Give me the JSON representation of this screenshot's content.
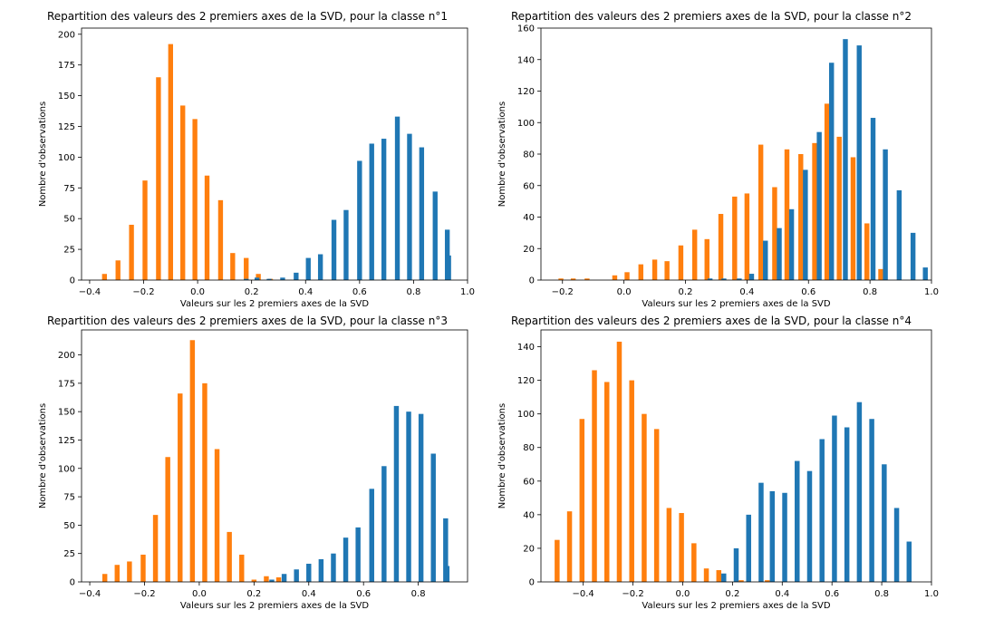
{
  "colors": {
    "series_blue": "#1f77b4",
    "series_orange": "#ff7f0e",
    "axis": "#000000",
    "background": "#ffffff"
  },
  "chart_data": [
    {
      "type": "bar",
      "title": "Repartition des valeurs des 2 premiers axes de la SVD, pour la classe n°1",
      "xlabel": "Valeurs sur les 2 premiers axes de la SVD",
      "ylabel": "Nombre d'observations",
      "xlim": [
        -0.43,
        1.0
      ],
      "ylim": [
        0,
        205
      ],
      "xticks": [
        -0.4,
        -0.2,
        0.0,
        0.2,
        0.4,
        0.6,
        0.8,
        1.0
      ],
      "xtick_labels": [
        "−0.4",
        "−0.2",
        "0.0",
        "0.2",
        "0.4",
        "0.6",
        "0.8",
        "1.0"
      ],
      "yticks": [
        0,
        25,
        50,
        75,
        100,
        125,
        150,
        175,
        200
      ],
      "grid": false,
      "legend": "none",
      "bar_width": 0.018,
      "series": [
        {
          "color": "#ff7f0e",
          "x": [
            -0.345,
            -0.295,
            -0.245,
            -0.195,
            -0.145,
            -0.1,
            -0.055,
            -0.01,
            0.035,
            0.085,
            0.13,
            0.18,
            0.225,
            0.27
          ],
          "values": [
            5,
            16,
            45,
            81,
            165,
            192,
            142,
            131,
            85,
            65,
            22,
            18,
            5,
            1
          ]
        },
        {
          "color": "#1f77b4",
          "x": [
            0.18,
            0.22,
            0.265,
            0.315,
            0.365,
            0.41,
            0.455,
            0.505,
            0.55,
            0.6,
            0.645,
            0.69,
            0.74,
            0.785,
            0.83,
            0.88,
            0.925
          ],
          "values": [
            1,
            2,
            1,
            2,
            6,
            18,
            21,
            49,
            57,
            97,
            111,
            115,
            133,
            119,
            108,
            72,
            41
          ]
        },
        {
          "color": "#1f77b4",
          "x": [
            0.93
          ],
          "values": [
            20
          ]
        }
      ]
    },
    {
      "type": "bar",
      "title": "Repartition des valeurs des 2 premiers axes de la SVD, pour la classe n°2",
      "xlabel": "Valeurs sur les 2 premiers axes de la SVD",
      "ylabel": "Nombre d'observations",
      "xlim": [
        -0.27,
        1.0
      ],
      "ylim": [
        0,
        160
      ],
      "xticks": [
        -0.2,
        0.0,
        0.2,
        0.4,
        0.6,
        0.8,
        1.0
      ],
      "xtick_labels": [
        "−0.2",
        "0.0",
        "0.2",
        "0.4",
        "0.6",
        "0.8",
        "1.0"
      ],
      "yticks": [
        0,
        20,
        40,
        60,
        80,
        100,
        120,
        140,
        160
      ],
      "grid": false,
      "legend": "none",
      "bar_width": 0.016,
      "series": [
        {
          "color": "#ff7f0e",
          "x": [
            -0.205,
            -0.165,
            -0.12,
            -0.075,
            -0.03,
            0.01,
            0.055,
            0.1,
            0.14,
            0.185,
            0.23,
            0.27,
            0.315,
            0.36,
            0.4,
            0.445,
            0.49,
            0.53,
            0.575,
            0.62,
            0.66,
            0.7,
            0.745
          ],
          "values": [
            1,
            1,
            1,
            0,
            3,
            5,
            10,
            13,
            12,
            22,
            32,
            26,
            42,
            53,
            55,
            86,
            59,
            83,
            80,
            87,
            112,
            91,
            78
          ]
        },
        {
          "color": "#ff7f0e",
          "x": [
            0.79,
            0.835
          ],
          "values": [
            36,
            7
          ]
        },
        {
          "color": "#1f77b4",
          "x": [
            0.28,
            0.325,
            0.375,
            0.415,
            0.46,
            0.505,
            0.545,
            0.59,
            0.635,
            0.675,
            0.72,
            0.765,
            0.81,
            0.85,
            0.895,
            0.94,
            0.98
          ],
          "values": [
            1,
            1,
            1,
            4,
            25,
            33,
            45,
            70,
            94,
            138,
            153,
            149,
            103,
            83,
            57,
            30,
            8
          ]
        }
      ]
    },
    {
      "type": "bar",
      "title": "Repartition des valeurs des 2 premiers axes de la SVD, pour la classe n°3",
      "xlabel": "Valeurs sur les 2 premiers axes de la SVD",
      "ylabel": "Nombre d'observations",
      "xlim": [
        -0.43,
        0.98
      ],
      "ylim": [
        0,
        222
      ],
      "xticks": [
        -0.4,
        -0.2,
        0.0,
        0.2,
        0.4,
        0.6,
        0.8
      ],
      "xtick_labels": [
        "−0.4",
        "−0.2",
        "0.0",
        "0.2",
        "0.4",
        "0.6",
        "0.8"
      ],
      "yticks": [
        0,
        25,
        50,
        75,
        100,
        125,
        150,
        175,
        200
      ],
      "grid": false,
      "legend": "none",
      "bar_width": 0.018,
      "series": [
        {
          "color": "#ff7f0e",
          "x": [
            -0.345,
            -0.3,
            -0.255,
            -0.205,
            -0.16,
            -0.115,
            -0.07,
            -0.025,
            0.02,
            0.065,
            0.11,
            0.155,
            0.2,
            0.245,
            0.29
          ],
          "values": [
            7,
            15,
            18,
            24,
            59,
            110,
            166,
            213,
            175,
            117,
            44,
            24,
            2,
            5,
            4
          ]
        },
        {
          "color": "#1f77b4",
          "x": [
            0.265,
            0.31,
            0.355,
            0.4,
            0.445,
            0.49,
            0.535,
            0.58,
            0.63,
            0.675,
            0.72,
            0.765,
            0.81,
            0.855,
            0.9
          ],
          "values": [
            2,
            7,
            11,
            16,
            20,
            25,
            39,
            48,
            82,
            102,
            155,
            150,
            148,
            113,
            56
          ]
        },
        {
          "color": "#1f77b4",
          "x": [
            0.905
          ],
          "values": [
            14
          ]
        }
      ]
    },
    {
      "type": "bar",
      "title": "Repartition des valeurs des 2 premiers axes de la SVD, pour la classe n°4",
      "xlabel": "Valeurs sur les 2 premiers axes de la SVD",
      "ylabel": "Nombre d'observations",
      "xlim": [
        -0.57,
        1.0
      ],
      "ylim": [
        0,
        150
      ],
      "xticks": [
        -0.4,
        -0.2,
        0.0,
        0.2,
        0.4,
        0.6,
        0.8,
        1.0
      ],
      "xtick_labels": [
        "−0.4",
        "−0.2",
        "0.0",
        "0.2",
        "0.4",
        "0.6",
        "0.8",
        "1.0"
      ],
      "yticks": [
        0,
        20,
        40,
        60,
        80,
        100,
        120,
        140
      ],
      "grid": false,
      "legend": "none",
      "bar_width": 0.02,
      "series": [
        {
          "color": "#ff7f0e",
          "x": [
            -0.505,
            -0.455,
            -0.405,
            -0.355,
            -0.305,
            -0.255,
            -0.205,
            -0.155,
            -0.105,
            -0.055,
            -0.005,
            0.045,
            0.095,
            0.145
          ],
          "values": [
            25,
            42,
            97,
            126,
            119,
            143,
            120,
            100,
            91,
            44,
            41,
            23,
            8,
            7
          ]
        },
        {
          "color": "#ff7f0e",
          "x": [
            0.235,
            0.34
          ],
          "values": [
            1,
            1
          ]
        },
        {
          "color": "#1f77b4",
          "x": [
            0.165,
            0.215,
            0.265,
            0.315,
            0.36,
            0.41,
            0.46,
            0.51,
            0.56,
            0.61,
            0.66,
            0.71,
            0.76,
            0.81,
            0.86,
            0.91
          ],
          "values": [
            5,
            20,
            40,
            59,
            54,
            53,
            72,
            66,
            85,
            99,
            92,
            107,
            97,
            70,
            44,
            24
          ]
        }
      ]
    }
  ]
}
